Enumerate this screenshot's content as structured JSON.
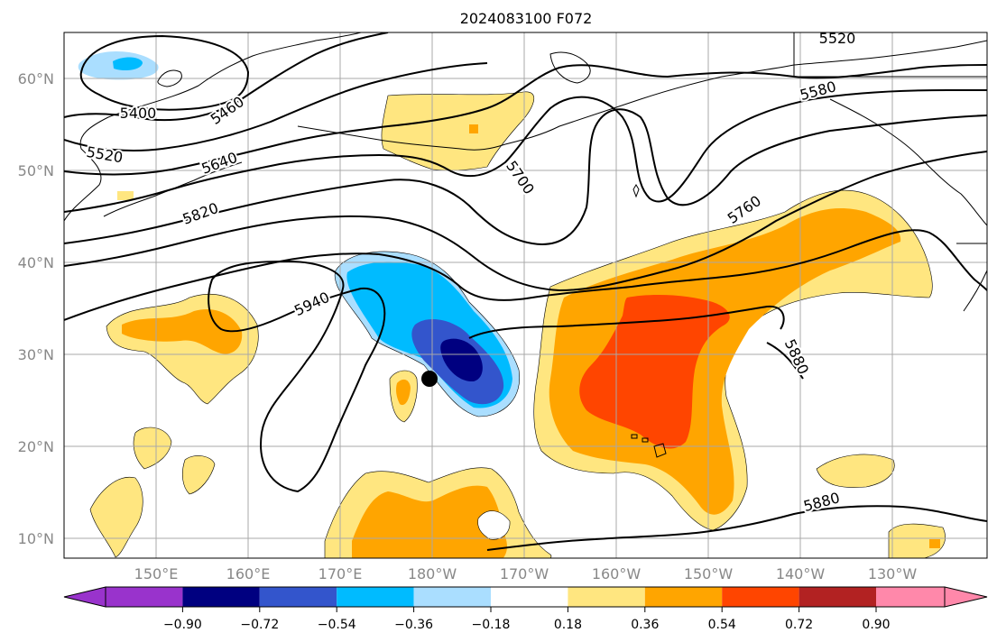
{
  "map": {
    "title": "2024083100 F072",
    "lat_labels": [
      "60°N",
      "50°N",
      "40°N",
      "30°N",
      "20°N",
      "10°N"
    ],
    "lon_labels": [
      "150°E",
      "160°E",
      "170°E",
      "180°W",
      "170°W",
      "160°W",
      "150°W",
      "140°W",
      "130°W"
    ],
    "contour_labels": [
      "5400",
      "5460",
      "5520",
      "5520",
      "5580",
      "5640",
      "5700",
      "5760",
      "5820",
      "5880",
      "5880",
      "5940"
    ],
    "marker": "storm-center",
    "shading_colors": [
      "#9933cc",
      "#000080",
      "#3355cc",
      "#00bbff",
      "#aadeff",
      "#ffffff",
      "#ffe680",
      "#ffa500",
      "#ff4500",
      "#b22222",
      "#ff88aa"
    ]
  },
  "colorbar": {
    "ticks": [
      "−0.90",
      "−0.72",
      "−0.54",
      "−0.36",
      "−0.18",
      "0.18",
      "0.36",
      "0.54",
      "0.72",
      "0.90"
    ],
    "colors": [
      "#9933cc",
      "#000080",
      "#3355cc",
      "#00bbff",
      "#aadeff",
      "#ffffff",
      "#ffe680",
      "#ffa500",
      "#ff4500",
      "#b22222",
      "#ff88aa"
    ]
  }
}
